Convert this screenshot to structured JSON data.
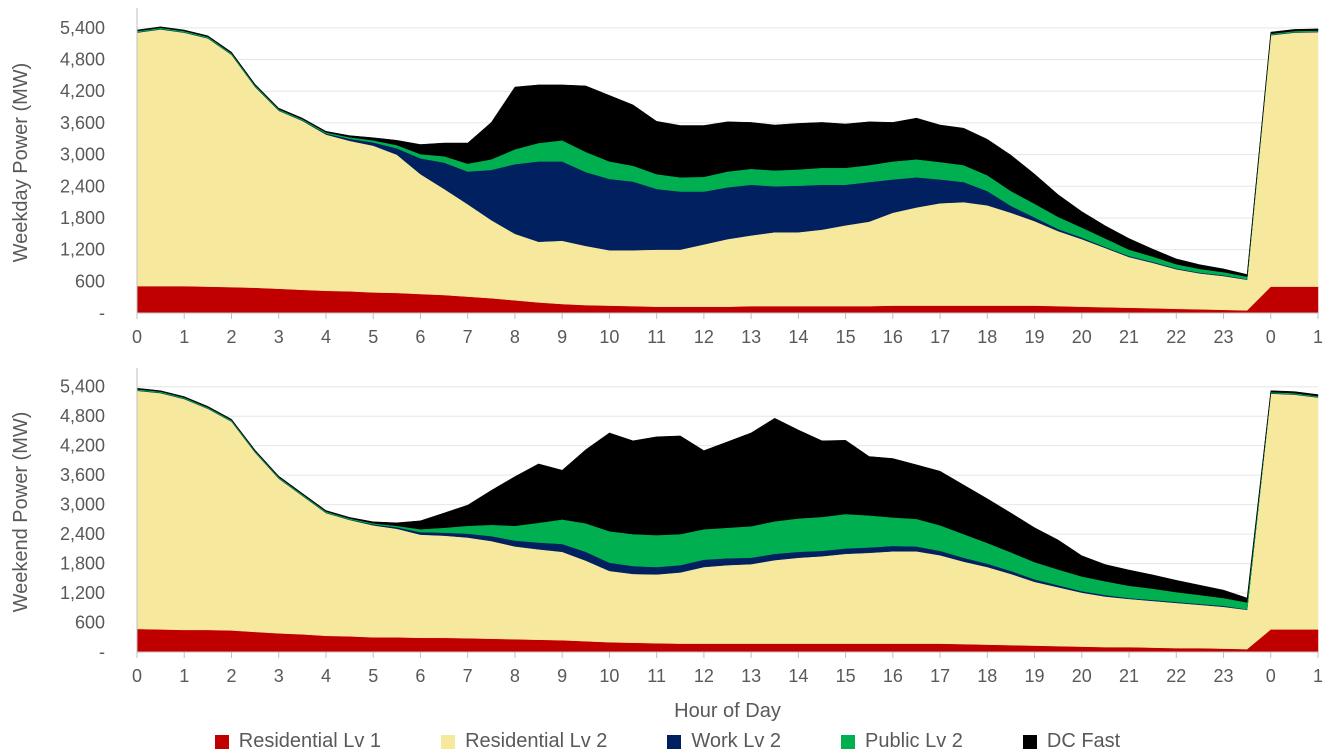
{
  "chart_data": [
    {
      "type": "area",
      "stacked": true,
      "ylabel": "Weekday Power (MW)",
      "xlabel": "",
      "ylim": [
        0,
        5700
      ],
      "yticks": [
        "-",
        "600",
        "1,200",
        "1,800",
        "2,400",
        "3,000",
        "3,600",
        "4,200",
        "4,800",
        "5,400"
      ],
      "x": [
        0,
        0.5,
        1,
        1.5,
        2,
        2.5,
        3,
        3.5,
        4,
        4.5,
        5,
        5.5,
        6,
        6.5,
        7,
        7.5,
        8,
        8.5,
        9,
        9.5,
        10,
        10.5,
        11,
        11.5,
        12,
        12.5,
        13,
        13.5,
        14,
        14.5,
        15,
        15.5,
        16,
        16.5,
        17,
        17.5,
        18,
        18.5,
        19,
        19.5,
        20,
        20.5,
        21,
        21.5,
        22,
        22.5,
        23,
        23.5,
        24,
        24.5,
        25
      ],
      "series": [
        {
          "name": "Residential Lv 1",
          "values": [
            510,
            510,
            510,
            500,
            490,
            480,
            460,
            440,
            420,
            410,
            390,
            380,
            360,
            340,
            310,
            280,
            240,
            200,
            170,
            150,
            140,
            130,
            120,
            120,
            120,
            120,
            130,
            130,
            130,
            130,
            130,
            130,
            140,
            140,
            140,
            140,
            140,
            140,
            140,
            130,
            120,
            110,
            100,
            90,
            80,
            70,
            60,
            50,
            500,
            500,
            500
          ]
        },
        {
          "name": "Residential Lv 2",
          "values": [
            4800,
            4860,
            4800,
            4700,
            4400,
            3800,
            3370,
            3200,
            2960,
            2850,
            2780,
            2620,
            2270,
            2010,
            1750,
            1480,
            1260,
            1150,
            1200,
            1120,
            1050,
            1060,
            1080,
            1080,
            1180,
            1280,
            1340,
            1400,
            1400,
            1450,
            1530,
            1600,
            1760,
            1860,
            1940,
            1960,
            1900,
            1760,
            1600,
            1420,
            1280,
            1120,
            960,
            860,
            750,
            680,
            640,
            580,
            4760,
            4810,
            4820
          ]
        },
        {
          "name": "Work Lv 2",
          "values": [
            10,
            10,
            10,
            10,
            10,
            10,
            10,
            10,
            20,
            40,
            60,
            120,
            300,
            500,
            620,
            950,
            1320,
            1520,
            1500,
            1400,
            1350,
            1300,
            1150,
            1100,
            1000,
            980,
            960,
            870,
            880,
            850,
            770,
            750,
            630,
            570,
            450,
            380,
            270,
            130,
            70,
            40,
            30,
            20,
            20,
            20,
            15,
            15,
            15,
            10,
            10,
            10,
            10
          ]
        },
        {
          "name": "Public Lv 2",
          "values": [
            20,
            20,
            20,
            20,
            20,
            20,
            20,
            20,
            20,
            30,
            40,
            60,
            80,
            120,
            150,
            200,
            280,
            350,
            400,
            380,
            330,
            300,
            280,
            270,
            280,
            300,
            300,
            300,
            310,
            320,
            320,
            320,
            340,
            340,
            330,
            320,
            300,
            280,
            260,
            230,
            190,
            160,
            120,
            100,
            80,
            70,
            60,
            50,
            20,
            20,
            20
          ]
        },
        {
          "name": "DC Fast",
          "values": [
            20,
            20,
            20,
            20,
            20,
            20,
            20,
            20,
            20,
            30,
            50,
            90,
            180,
            250,
            390,
            700,
            1180,
            1100,
            1050,
            1250,
            1250,
            1150,
            1000,
            980,
            970,
            940,
            880,
            860,
            870,
            860,
            830,
            820,
            740,
            780,
            700,
            700,
            680,
            680,
            560,
            420,
            300,
            240,
            210,
            140,
            100,
            80,
            60,
            40,
            30,
            30,
            30
          ]
        }
      ]
    },
    {
      "type": "area",
      "stacked": true,
      "ylabel": "Weekend Power (MW)",
      "xlabel": "Hour of Day",
      "ylim": [
        0,
        5700
      ],
      "yticks": [
        "-",
        "600",
        "1,200",
        "1,800",
        "2,400",
        "3,000",
        "3,600",
        "4,200",
        "4,800",
        "5,400"
      ],
      "xticks": [
        "0",
        "1",
        "2",
        "3",
        "4",
        "5",
        "6",
        "7",
        "8",
        "9",
        "10",
        "11",
        "12",
        "13",
        "14",
        "15",
        "16",
        "17",
        "18",
        "19",
        "20",
        "21",
        "22",
        "23",
        "0",
        "1"
      ],
      "x": [
        0,
        0.5,
        1,
        1.5,
        2,
        2.5,
        3,
        3.5,
        4,
        4.5,
        5,
        5.5,
        6,
        6.5,
        7,
        7.5,
        8,
        8.5,
        9,
        9.5,
        10,
        10.5,
        11,
        11.5,
        12,
        12.5,
        13,
        13.5,
        14,
        14.5,
        15,
        15.5,
        16,
        16.5,
        17,
        17.5,
        18,
        18.5,
        19,
        19.5,
        20,
        20.5,
        21,
        21.5,
        22,
        22.5,
        23,
        23.5,
        24,
        24.5,
        25
      ],
      "series": [
        {
          "name": "Residential Lv 1",
          "values": [
            470,
            460,
            450,
            450,
            440,
            410,
            380,
            360,
            330,
            320,
            300,
            300,
            290,
            290,
            280,
            270,
            260,
            250,
            240,
            220,
            200,
            190,
            180,
            170,
            170,
            170,
            170,
            170,
            170,
            170,
            170,
            170,
            170,
            170,
            170,
            160,
            150,
            140,
            130,
            120,
            110,
            100,
            100,
            90,
            80,
            80,
            70,
            60,
            460,
            460,
            460
          ]
        },
        {
          "name": "Residential Lv 2",
          "values": [
            4850,
            4810,
            4700,
            4500,
            4250,
            3650,
            3150,
            2820,
            2500,
            2370,
            2280,
            2210,
            2100,
            2080,
            2050,
            1990,
            1890,
            1840,
            1800,
            1640,
            1450,
            1400,
            1400,
            1450,
            1560,
            1600,
            1620,
            1700,
            1750,
            1780,
            1830,
            1850,
            1880,
            1880,
            1800,
            1680,
            1580,
            1450,
            1300,
            1200,
            1100,
            1030,
            980,
            950,
            920,
            880,
            850,
            800,
            4800,
            4780,
            4720
          ]
        },
        {
          "name": "Work Lv 2",
          "values": [
            10,
            10,
            10,
            10,
            10,
            10,
            10,
            10,
            10,
            10,
            20,
            30,
            50,
            60,
            80,
            100,
            120,
            140,
            160,
            180,
            170,
            160,
            150,
            150,
            150,
            140,
            130,
            130,
            120,
            110,
            110,
            110,
            110,
            100,
            90,
            80,
            70,
            60,
            50,
            40,
            30,
            30,
            20,
            20,
            20,
            20,
            20,
            10,
            10,
            10,
            10
          ]
        },
        {
          "name": "Public Lv 2",
          "values": [
            20,
            20,
            20,
            20,
            20,
            20,
            20,
            20,
            20,
            20,
            20,
            30,
            60,
            100,
            160,
            230,
            300,
            400,
            500,
            580,
            640,
            650,
            650,
            630,
            620,
            620,
            640,
            660,
            680,
            690,
            700,
            650,
            580,
            560,
            520,
            480,
            420,
            380,
            350,
            320,
            300,
            280,
            250,
            230,
            200,
            180,
            160,
            140,
            20,
            20,
            20
          ]
        },
        {
          "name": "DC Fast",
          "values": [
            20,
            20,
            20,
            20,
            20,
            20,
            20,
            20,
            20,
            20,
            30,
            60,
            170,
            300,
            420,
            700,
            1000,
            1200,
            1000,
            1500,
            2000,
            1900,
            2000,
            2000,
            1600,
            1750,
            1900,
            2100,
            1800,
            1550,
            1500,
            1200,
            1200,
            1100,
            1100,
            1000,
            900,
            800,
            700,
            600,
            420,
            340,
            320,
            280,
            240,
            200,
            160,
            90,
            30,
            30,
            30
          ]
        }
      ]
    }
  ],
  "legend": [
    {
      "label": "Residential Lv 1",
      "color": "#c00000"
    },
    {
      "label": "Residential Lv 2",
      "color": "#f6e89c"
    },
    {
      "label": "Work Lv 2",
      "color": "#002060"
    },
    {
      "label": "Public Lv 2",
      "color": "#00b050"
    },
    {
      "label": "DC Fast",
      "color": "#000000"
    }
  ]
}
